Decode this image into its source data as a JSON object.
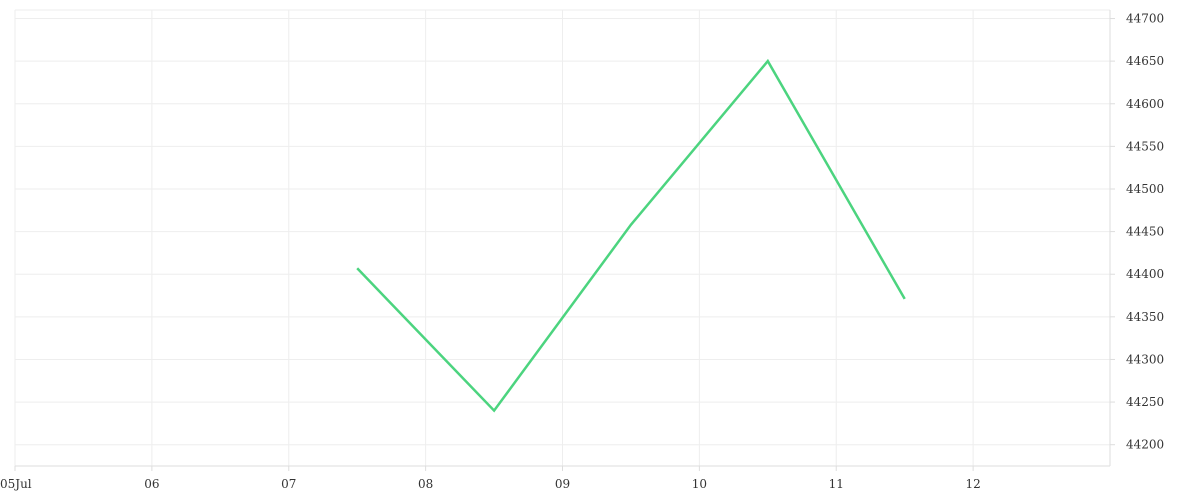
{
  "chart_data": {
    "type": "line",
    "title": "",
    "xlabel": "",
    "ylabel": "",
    "x_tick_labels": [
      "05Jul",
      "06",
      "07",
      "08",
      "09",
      "10",
      "11",
      "12"
    ],
    "x_tick_dates": [
      "2023-07-05",
      "2023-07-06",
      "2023-07-07",
      "2023-07-08",
      "2023-07-09",
      "2023-07-10",
      "2023-07-11",
      "2023-07-12"
    ],
    "xlim": [
      "2023-07-05",
      "2023-07-13"
    ],
    "y_ticks": [
      44200,
      44250,
      44300,
      44350,
      44400,
      44450,
      44500,
      44550,
      44600,
      44650,
      44700
    ],
    "ylim": [
      44175,
      44710
    ],
    "y_axis_position": "right",
    "grid": true,
    "legend": "none",
    "series": [
      {
        "color": "#4cd47f",
        "points": [
          {
            "x": "2023-07-07T12:00",
            "y": 44407
          },
          {
            "x": "2023-07-08T12:00",
            "y": 44240
          },
          {
            "x": "2023-07-09T12:00",
            "y": 44458
          },
          {
            "x": "2023-07-10T12:00",
            "y": 44650
          },
          {
            "x": "2023-07-11T12:00",
            "y": 44371
          }
        ]
      }
    ]
  }
}
